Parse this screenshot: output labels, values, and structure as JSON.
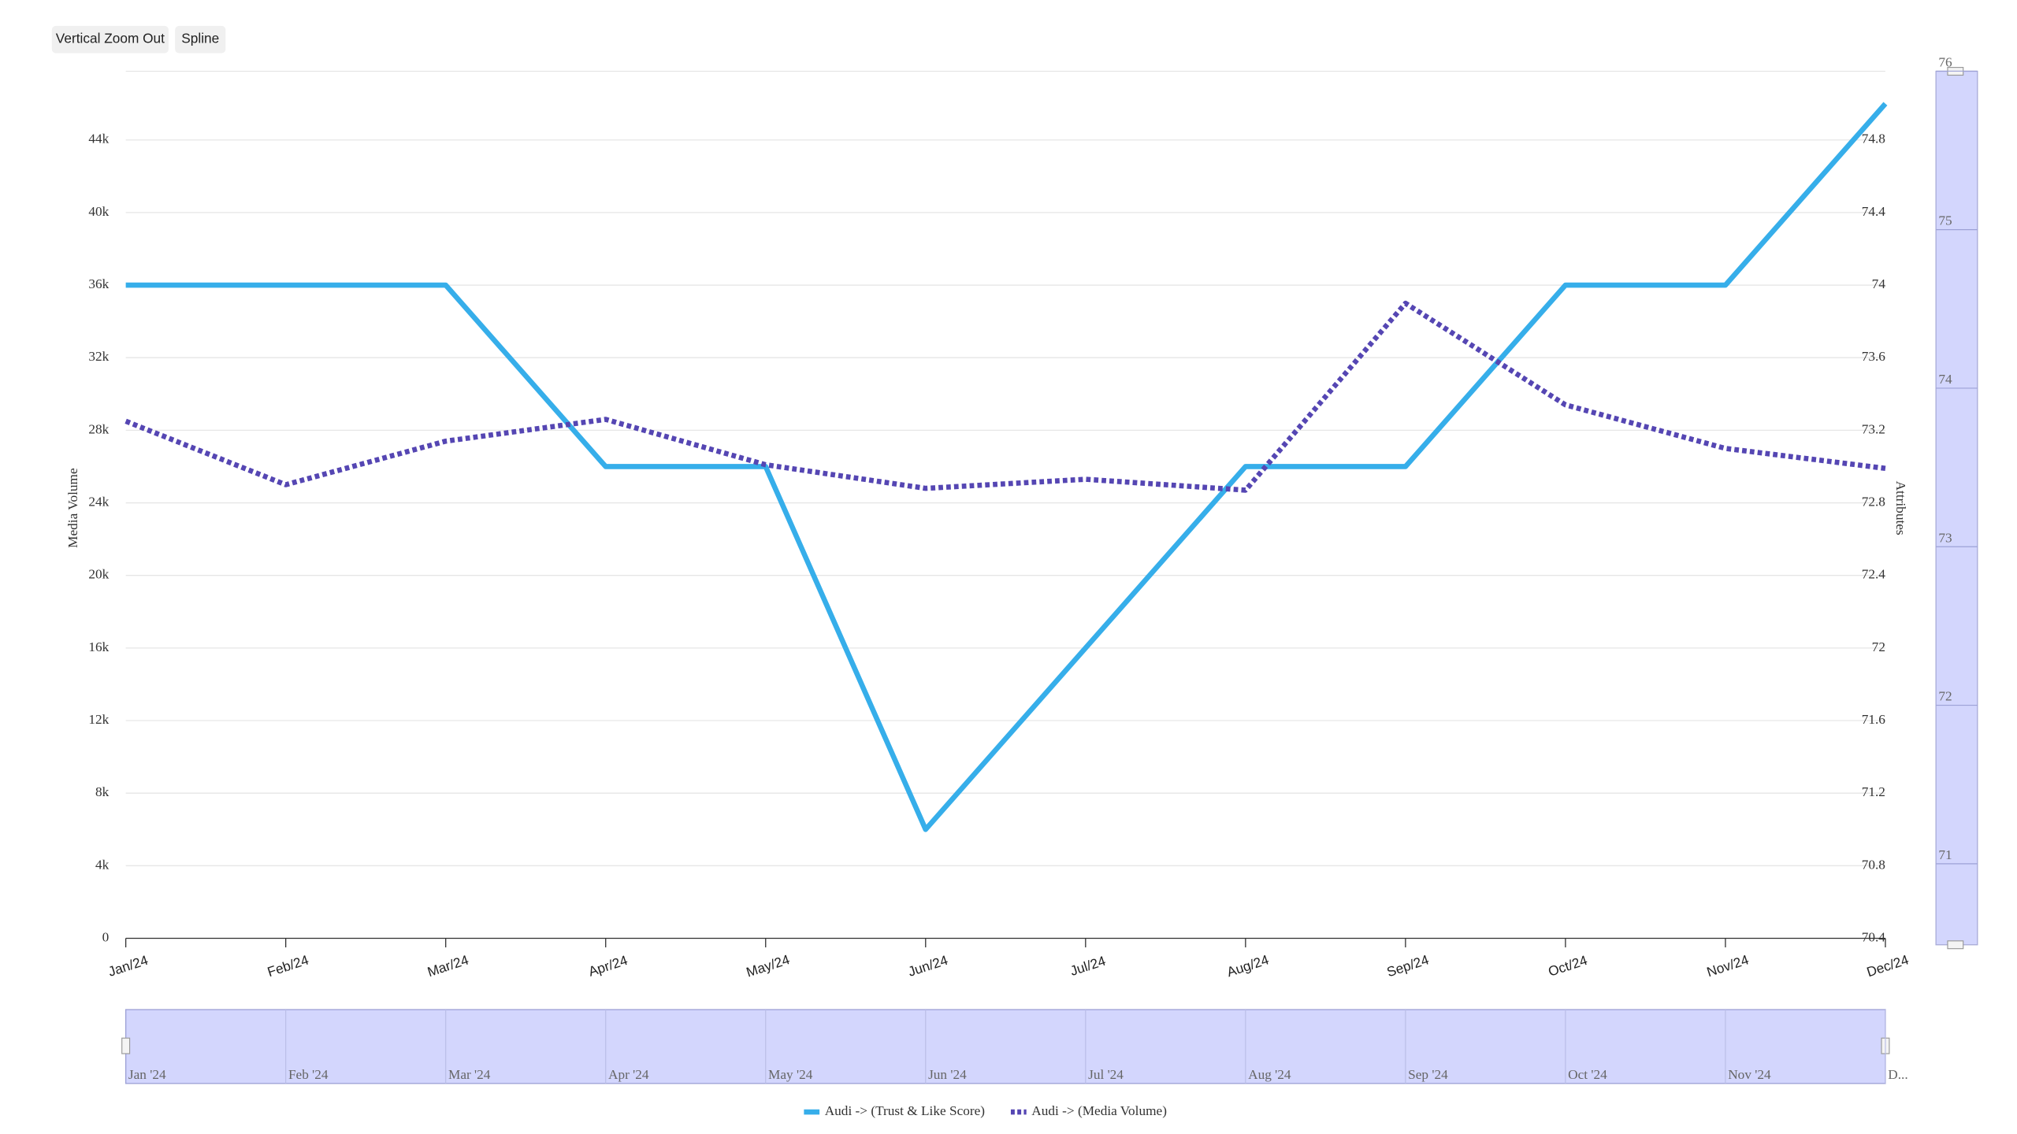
{
  "buttons": [
    "Vertical Zoom Out",
    "Spline"
  ],
  "chart_data": {
    "type": "line",
    "categories": [
      "Jan/24",
      "Feb/24",
      "Mar/24",
      "Apr/24",
      "May/24",
      "Jun/24",
      "Jul/24",
      "Aug/24",
      "Sep/24",
      "Oct/24",
      "Nov/24",
      "Dec/24"
    ],
    "series": [
      {
        "name": "Audi -> (Trust & Like Score)",
        "color": "#36aeea",
        "axis": "y2",
        "dashed": false,
        "values": [
          74,
          74,
          74,
          73,
          73,
          71,
          72,
          73,
          73,
          74,
          74,
          75
        ]
      },
      {
        "name": "Audi -> (Media Volume)",
        "color": "#5546b3",
        "dashed": true,
        "values": [
          28500,
          25000,
          27400,
          28600,
          26100,
          24800,
          25300,
          24700,
          35000,
          29400,
          27000,
          25900
        ]
      }
    ],
    "ylabel": "Media Volume",
    "y2label": "Attributes",
    "ylim": [
      0,
      48000
    ],
    "yticks": [
      0,
      {
        "value": 4000,
        "label": "4k"
      },
      {
        "value": 8000,
        "label": "8k"
      },
      {
        "value": 12000,
        "label": "12k"
      },
      {
        "value": 16000,
        "label": "16k"
      },
      {
        "value": 20000,
        "label": "20k"
      },
      {
        "value": 24000,
        "label": "24k"
      },
      {
        "value": 28000,
        "label": "28k"
      },
      {
        "value": 32000,
        "label": "32k"
      },
      {
        "value": 36000,
        "label": "36k"
      },
      {
        "value": 40000,
        "label": "40k"
      },
      {
        "value": 44000,
        "label": "44k"
      }
    ],
    "y2lim": [
      70.4,
      75.2
    ],
    "y2ticks": [
      70.4,
      70.8,
      71.2,
      71.6,
      72,
      72.4,
      72.8,
      73.2,
      73.6,
      74,
      74.4,
      74.8
    ],
    "grid": true,
    "legend": "bottom"
  },
  "y_navigator": {
    "ylim": [
      70.44,
      75.95
    ],
    "yticks": [
      71,
      72,
      73,
      74,
      75,
      76
    ]
  },
  "x_navigator": {
    "labels": [
      "Jan '24",
      "Feb '24",
      "Mar '24",
      "Apr '24",
      "May '24",
      "Jun '24",
      "Jul '24",
      "Aug '24",
      "Sep '24",
      "Oct '24",
      "Nov '24",
      "D..."
    ]
  }
}
